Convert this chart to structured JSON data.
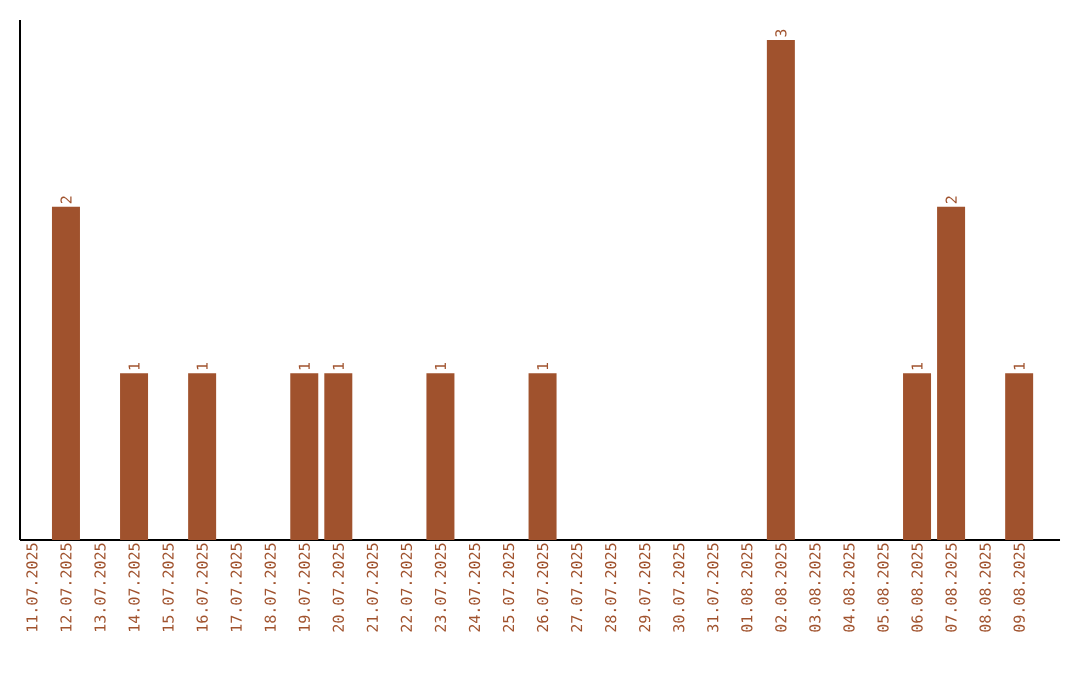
{
  "chart_data": {
    "type": "bar",
    "categories": [
      "11.07.2025",
      "12.07.2025",
      "13.07.2025",
      "14.07.2025",
      "15.07.2025",
      "16.07.2025",
      "17.07.2025",
      "18.07.2025",
      "19.07.2025",
      "20.07.2025",
      "21.07.2025",
      "22.07.2025",
      "23.07.2025",
      "24.07.2025",
      "25.07.2025",
      "26.07.2025",
      "27.07.2025",
      "28.07.2025",
      "29.07.2025",
      "30.07.2025",
      "31.07.2025",
      "01.08.2025",
      "02.08.2025",
      "03.08.2025",
      "04.08.2025",
      "05.08.2025",
      "06.08.2025",
      "07.08.2025",
      "08.08.2025",
      "09.08.2025"
    ],
    "values": [
      0,
      2,
      0,
      1,
      0,
      1,
      0,
      0,
      1,
      1,
      0,
      0,
      1,
      0,
      0,
      1,
      0,
      0,
      0,
      0,
      0,
      0,
      3,
      0,
      0,
      0,
      1,
      2,
      0,
      1
    ],
    "value_labels": [
      null,
      "2",
      null,
      "1",
      null,
      "1",
      null,
      null,
      "1",
      "1",
      null,
      null,
      "1",
      null,
      null,
      "1",
      null,
      null,
      null,
      null,
      null,
      null,
      "3",
      null,
      null,
      null,
      "1",
      "2",
      null,
      "1"
    ],
    "color": "#a0522d",
    "ylim": [
      0,
      3.12
    ],
    "tick_labels": "x"
  }
}
